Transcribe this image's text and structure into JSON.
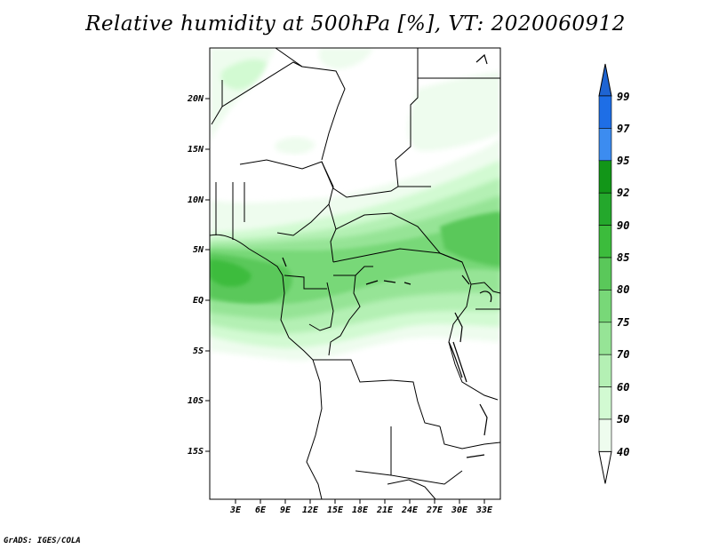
{
  "title": "Relative humidity at 500hPa [%], VT: 2020060912",
  "credit": "GrADS: IGES/COLA",
  "map": {
    "lat_labels": [
      "20N",
      "15N",
      "10N",
      "5N",
      "EQ",
      "5S",
      "10S",
      "15S"
    ],
    "lon_labels": [
      "3E",
      "6E",
      "9E",
      "12E",
      "15E",
      "18E",
      "21E",
      "24E",
      "27E",
      "30E",
      "33E"
    ],
    "colorbar_levels": [
      "99",
      "97",
      "95",
      "92",
      "90",
      "85",
      "80",
      "75",
      "70",
      "60",
      "50",
      "40"
    ],
    "colorbar_colors": [
      "#1e64d2",
      "#1e6ee6",
      "#3c8cf0",
      "#129618",
      "#24a82c",
      "#3cbc3c",
      "#5ac85a",
      "#78d878",
      "#96e496",
      "#b4f0b4",
      "#d2fad2",
      "#eefcee"
    ],
    "fill_colors": {
      "40": "#eefcee",
      "50": "#d2fad2",
      "60": "#b4f0b4",
      "70": "#96e496",
      "75": "#78d878",
      "80": "#5ac85a",
      "85": "#3cbc3c"
    }
  }
}
